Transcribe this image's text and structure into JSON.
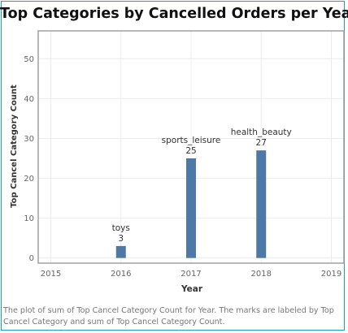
{
  "colors": {
    "bar": "#4e79a7",
    "border": "#17a3b3",
    "grid": "#ececec",
    "axis_text": "#666666"
  },
  "chart_data": {
    "type": "bar",
    "title": "Top Categories by Cancelled Orders per Year",
    "xlabel": "Year",
    "ylabel": "Top Cancel Category Count",
    "x_ticks": [
      "2015",
      "2016",
      "2017",
      "2018",
      "2019"
    ],
    "y_ticks": [
      "0",
      "10",
      "20",
      "30",
      "40",
      "50"
    ],
    "xlim": [
      2014.82,
      2019.18
    ],
    "ylim": [
      -1.3,
      57
    ],
    "grid": true,
    "bars": [
      {
        "x": 2016,
        "value": 3,
        "value_label": "3",
        "category": "toys"
      },
      {
        "x": 2017,
        "value": 25,
        "value_label": "25",
        "category": "sports_leisure"
      },
      {
        "x": 2018,
        "value": 27,
        "value_label": "27",
        "category": "health_beauty"
      }
    ]
  },
  "footnote": "The plot of sum of Top Cancel Category Count for Year.  The marks are labeled by Top Cancel Category and sum of Top Cancel Category Count."
}
